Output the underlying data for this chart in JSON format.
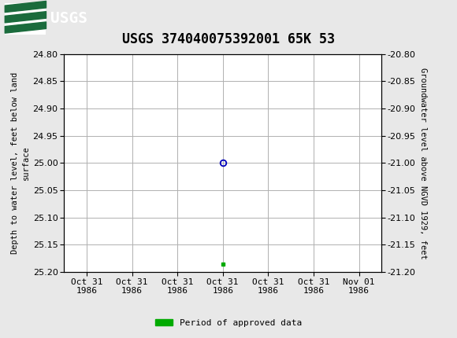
{
  "title": "USGS 374040075392001 65K 53",
  "title_fontsize": 12,
  "header_bg_color": "#1a6b3c",
  "plot_bg_color": "#ffffff",
  "fig_bg_color": "#e8e8e8",
  "grid_color": "#b0b0b0",
  "left_ylabel": "Depth to water level, feet below land\nsurface",
  "right_ylabel": "Groundwater level above NGVD 1929, feet",
  "ylim_left_top": 24.8,
  "ylim_left_bottom": 25.2,
  "ylim_right_top": -20.8,
  "ylim_right_bottom": -21.2,
  "yticks_left": [
    24.8,
    24.85,
    24.9,
    24.95,
    25.0,
    25.05,
    25.1,
    25.15,
    25.2
  ],
  "yticks_right": [
    -20.8,
    -20.85,
    -20.9,
    -20.95,
    -21.0,
    -21.05,
    -21.1,
    -21.15,
    -21.2
  ],
  "x_ticks": [
    0,
    1,
    2,
    3,
    4,
    5,
    6
  ],
  "x_tick_labels": [
    "Oct 31\n1986",
    "Oct 31\n1986",
    "Oct 31\n1986",
    "Oct 31\n1986",
    "Oct 31\n1986",
    "Oct 31\n1986",
    "Nov 01\n1986"
  ],
  "data_point_x": 3,
  "data_point_y": 25.0,
  "data_point_color": "#0000bb",
  "approved_x": 3,
  "approved_y": 25.185,
  "approved_color": "#00aa00",
  "legend_label": "Period of approved data",
  "font_family": "DejaVu Sans Mono",
  "tick_fontsize": 8,
  "ylabel_fontsize": 7.5,
  "legend_fontsize": 8
}
